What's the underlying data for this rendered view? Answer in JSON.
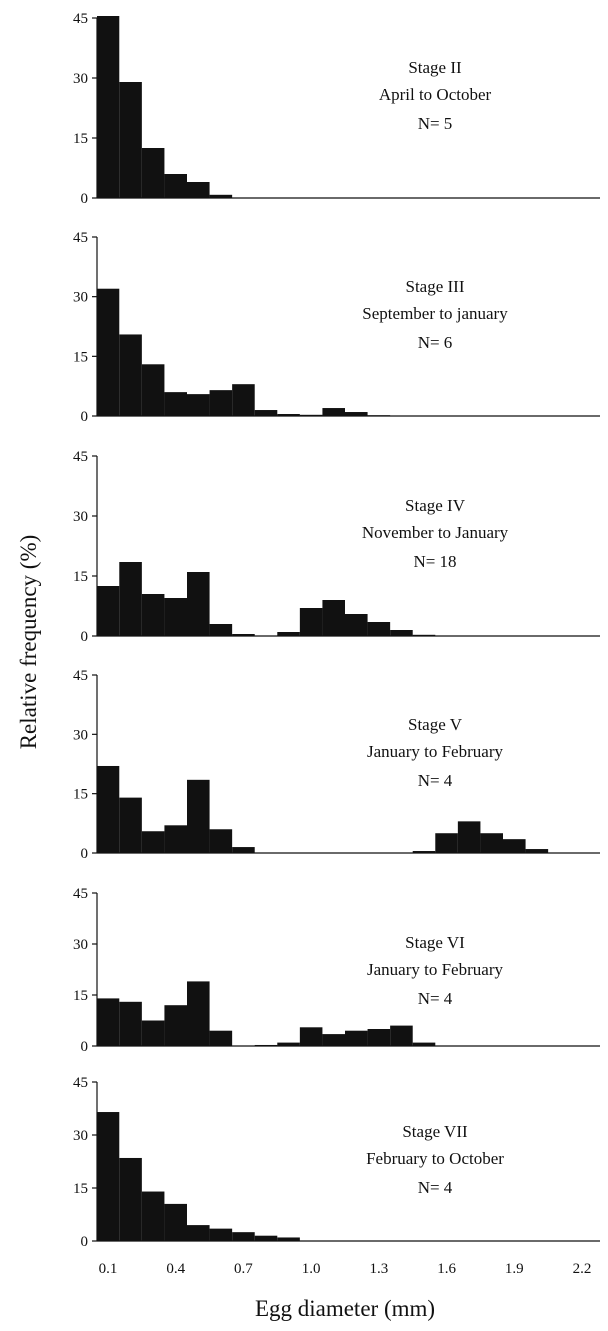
{
  "chart_data": {
    "type": "bar",
    "ylabel": "Relative frequency (%)",
    "xlabel": "Egg diameter (mm)",
    "xticks": [
      "0.1",
      "0.4",
      "0.7",
      "1.0",
      "1.3",
      "1.6",
      "1.9",
      "2.2"
    ],
    "yticks": [
      "0",
      "15",
      "30",
      "45"
    ],
    "bin_width": 0.1,
    "xlim": [
      0.1,
      2.2
    ],
    "ylim": [
      0,
      45
    ],
    "panels": [
      {
        "title": "Stage II",
        "subtitle": "April to October",
        "n": "N= 5",
        "values": [
          45.5,
          29.0,
          12.5,
          6.0,
          4.0,
          0.8
        ]
      },
      {
        "title": "Stage III",
        "subtitle": "September to january",
        "n": "N= 6",
        "values": [
          32.0,
          20.5,
          13.0,
          6.0,
          5.5,
          6.5,
          8.0,
          1.5,
          0.5,
          0.3,
          2.0,
          1.0,
          0.2
        ]
      },
      {
        "title": "Stage IV",
        "subtitle": "November to January",
        "n": "N= 18",
        "values": [
          12.5,
          18.5,
          10.5,
          9.5,
          16.0,
          3.0,
          0.5,
          0,
          1.0,
          7.0,
          9.0,
          5.5,
          3.5,
          1.5,
          0.3
        ]
      },
      {
        "title": "Stage V",
        "subtitle": "January to February",
        "n": "N= 4",
        "values": [
          22.0,
          14.0,
          5.5,
          7.0,
          18.5,
          6.0,
          1.5,
          0,
          0,
          0,
          0,
          0,
          0,
          0,
          0.5,
          5.0,
          8.0,
          5.0,
          3.5,
          1.0
        ]
      },
      {
        "title": "Stage VI",
        "subtitle": "January to February",
        "n": "N= 4",
        "values": [
          14.0,
          13.0,
          7.5,
          12.0,
          19.0,
          4.5,
          0,
          0.3,
          1.0,
          5.5,
          3.5,
          4.5,
          5.0,
          6.0,
          1.0
        ]
      },
      {
        "title": "Stage VII",
        "subtitle": "February to October",
        "n": "N= 4",
        "values": [
          36.5,
          23.5,
          14.0,
          10.5,
          4.5,
          3.5,
          2.5,
          1.5,
          1.0
        ]
      }
    ]
  }
}
